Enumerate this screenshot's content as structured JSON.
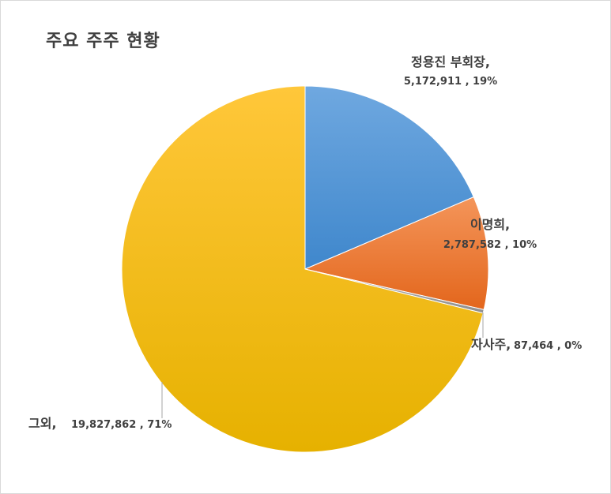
{
  "chart_data": {
    "type": "pie",
    "title": "주요 주주 현황",
    "slices": [
      {
        "name": "정용진 부회장,",
        "value": 5172911,
        "value_label": "5,172,911",
        "percent_label": "19%",
        "color": "#5b9bd5"
      },
      {
        "name": "이명희,",
        "value": 2787582,
        "value_label": "2,787,582",
        "percent_label": "10%",
        "color": "#ed7d31"
      },
      {
        "name": "자사주,",
        "value": 87464,
        "value_label": "87,464",
        "percent_label": "0%",
        "color": "#a5a5a5"
      },
      {
        "name": "그외,",
        "value": 19827862,
        "value_label": "19,827,862",
        "percent_label": "71%",
        "color": "#ffc000"
      }
    ]
  }
}
